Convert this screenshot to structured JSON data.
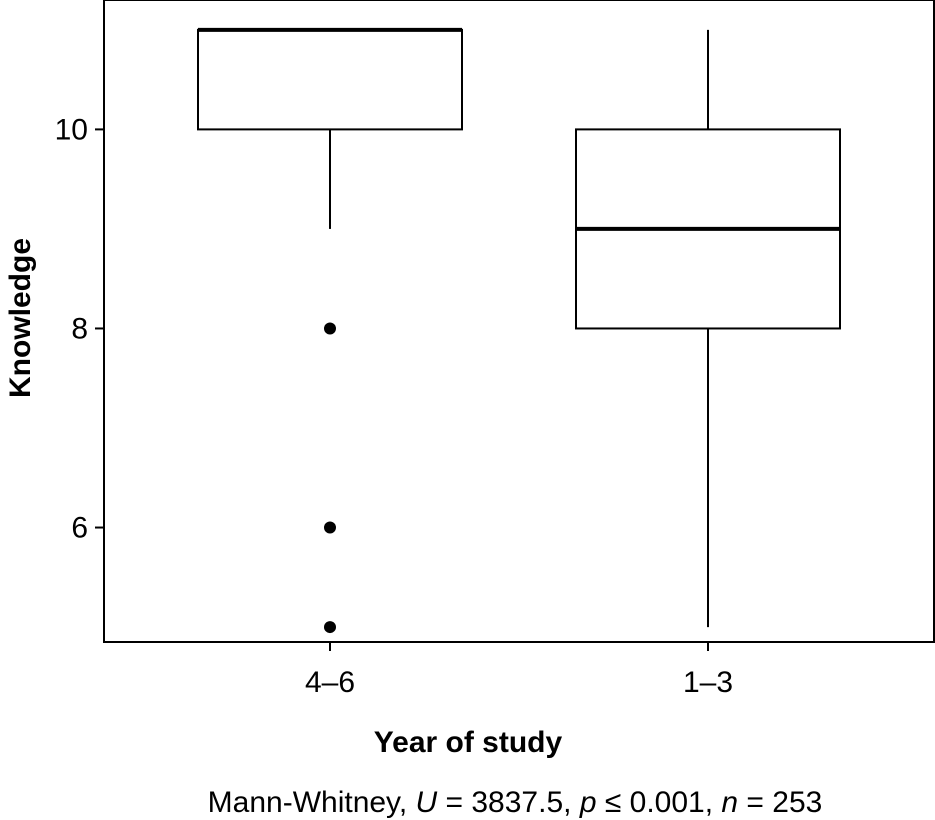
{
  "chart_data": {
    "type": "box",
    "title": "",
    "xlabel": "Year of study",
    "ylabel": "Knowledge",
    "ylim": [
      4.85,
      11.3
    ],
    "yticks": [
      "6",
      "8",
      "10"
    ],
    "grid": false,
    "categories": [
      "4–6",
      "1–3"
    ],
    "boxes": [
      {
        "category": "4–6",
        "whisker_low": 9,
        "q1": 10,
        "median": 11,
        "q3": 11,
        "whisker_high": 11,
        "outliers": [
          8,
          6,
          5
        ]
      },
      {
        "category": "1–3",
        "whisker_low": 5,
        "q1": 8,
        "median": 9,
        "q3": 10,
        "whisker_high": 11,
        "outliers": []
      }
    ],
    "caption": {
      "prefix": "Mann-Whitney, ",
      "u_symbol": "U",
      "u_value": " = 3837.5, ",
      "p_symbol": "p",
      "p_value": " ≤ 0.001, ",
      "n_symbol": "n",
      "n_value": " = 253"
    },
    "colors": {
      "stroke": "#000000",
      "fill": "#ffffff"
    }
  }
}
